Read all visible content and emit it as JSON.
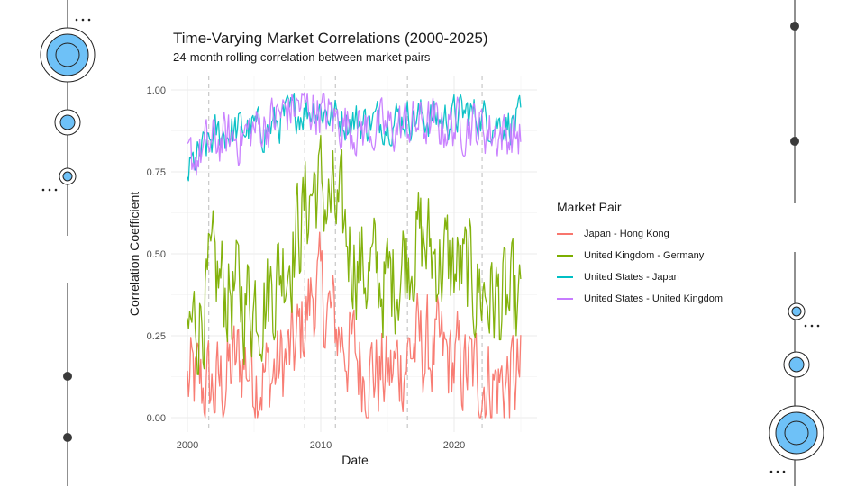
{
  "chart_data": {
    "type": "line",
    "title": "Time-Varying Market Correlations (2000-2025)",
    "subtitle": "24-month rolling correlation between market pairs",
    "xlabel": "Date",
    "ylabel": "Correlation Coefficient",
    "xlim": [
      2000,
      2025
    ],
    "ylim": [
      0,
      1
    ],
    "x_ticks": [
      2000,
      2010,
      2020
    ],
    "y_ticks": [
      0.0,
      0.25,
      0.5,
      0.75,
      1.0
    ],
    "y_tick_labels": [
      "0.00",
      "0.25",
      "0.50",
      "0.75",
      "1.00"
    ],
    "grid": true,
    "vertical_markers": [
      2001.6,
      2008.8,
      2011.1,
      2016.5,
      2022.1
    ],
    "legend": {
      "title": "Market Pair",
      "placement": "right"
    },
    "x_step": 0.0833,
    "series": [
      {
        "name": "Japan - Hong Kong",
        "color": "#F8766D",
        "keyframes": [
          [
            2000,
            0.1
          ],
          [
            2002,
            0.08
          ],
          [
            2004,
            0.18
          ],
          [
            2006,
            0.12
          ],
          [
            2008,
            0.2
          ],
          [
            2009.5,
            0.4
          ],
          [
            2011,
            0.28
          ],
          [
            2013,
            0.16
          ],
          [
            2015,
            0.12
          ],
          [
            2017,
            0.22
          ],
          [
            2019,
            0.18
          ],
          [
            2021,
            0.14
          ],
          [
            2023,
            0.1
          ],
          [
            2025,
            0.12
          ]
        ],
        "amplitude": 0.18
      },
      {
        "name": "United Kingdom - Germany",
        "color": "#7CAE00",
        "keyframes": [
          [
            2000,
            0.25
          ],
          [
            2002,
            0.42
          ],
          [
            2004,
            0.36
          ],
          [
            2006,
            0.38
          ],
          [
            2008,
            0.55
          ],
          [
            2009.5,
            0.72
          ],
          [
            2011,
            0.62
          ],
          [
            2013,
            0.46
          ],
          [
            2015,
            0.4
          ],
          [
            2017,
            0.55
          ],
          [
            2019,
            0.48
          ],
          [
            2021,
            0.42
          ],
          [
            2023,
            0.36
          ],
          [
            2025,
            0.3
          ]
        ],
        "amplitude": 0.2
      },
      {
        "name": "United States - Japan",
        "color": "#00BFC4",
        "keyframes": [
          [
            2000,
            0.75
          ],
          [
            2002,
            0.86
          ],
          [
            2004,
            0.88
          ],
          [
            2006,
            0.88
          ],
          [
            2008,
            0.93
          ],
          [
            2009.5,
            0.95
          ],
          [
            2011,
            0.92
          ],
          [
            2013,
            0.9
          ],
          [
            2015,
            0.91
          ],
          [
            2017,
            0.92
          ],
          [
            2019,
            0.91
          ],
          [
            2021,
            0.93
          ],
          [
            2023,
            0.9
          ],
          [
            2025,
            0.9
          ]
        ],
        "amplitude": 0.07
      },
      {
        "name": "United States - United Kingdom",
        "color": "#C77CFF",
        "keyframes": [
          [
            2000,
            0.78
          ],
          [
            2002,
            0.84
          ],
          [
            2004,
            0.86
          ],
          [
            2006,
            0.9
          ],
          [
            2008,
            0.95
          ],
          [
            2009.5,
            0.95
          ],
          [
            2011,
            0.91
          ],
          [
            2013,
            0.88
          ],
          [
            2015,
            0.88
          ],
          [
            2017,
            0.9
          ],
          [
            2019,
            0.89
          ],
          [
            2021,
            0.9
          ],
          [
            2023,
            0.87
          ],
          [
            2025,
            0.86
          ]
        ],
        "amplitude": 0.09
      }
    ]
  },
  "decor": {
    "line_color": "#222222",
    "fill_color": "#6ec1f7",
    "dot_color": "#3a3a3a"
  }
}
